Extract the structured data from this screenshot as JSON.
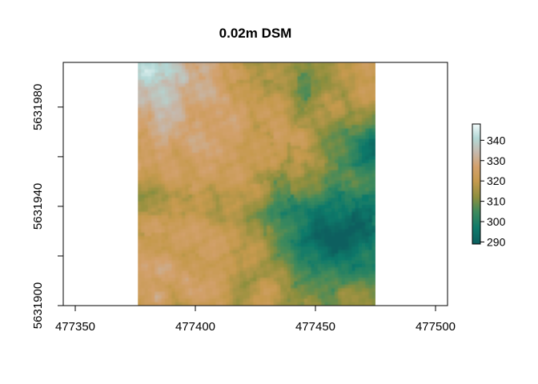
{
  "chart_data": {
    "type": "heatmap",
    "title": "0.02m  DSM",
    "xlabel": "",
    "ylabel": "",
    "xlim": [
      477345,
      477505
    ],
    "ylim": [
      5631900,
      5631998
    ],
    "raster_extent": {
      "x": [
        477376,
        477475
      ],
      "y": [
        5631900,
        5631998
      ]
    },
    "x_ticks": [
      477350,
      477400,
      477450,
      477500
    ],
    "x_tick_labels": [
      "477350",
      "477400",
      "477450",
      "477500"
    ],
    "y_ticks": [
      5631900,
      5631920,
      5631940,
      5631960,
      5631980
    ],
    "y_tick_labels": [
      "5631900",
      "",
      "5631940",
      "",
      "5631980"
    ],
    "grid": false,
    "legend": {
      "placement": "right",
      "min": 289,
      "max": 348,
      "ticks": [
        290,
        300,
        310,
        320,
        330,
        340
      ],
      "tick_labels": [
        "290",
        "300",
        "310",
        "320",
        "330",
        "340"
      ]
    },
    "colormap": [
      {
        "value": 289,
        "color": "#0b5e5e"
      },
      {
        "value": 297,
        "color": "#0f7a6a"
      },
      {
        "value": 305,
        "color": "#3f8a5c"
      },
      {
        "value": 312,
        "color": "#8e8f3e"
      },
      {
        "value": 320,
        "color": "#c69a4e"
      },
      {
        "value": 327,
        "color": "#d3a16c"
      },
      {
        "value": 334,
        "color": "#c6b8ac"
      },
      {
        "value": 341,
        "color": "#b3d8d6"
      },
      {
        "value": 348,
        "color": "#f2fbfb"
      }
    ]
  }
}
